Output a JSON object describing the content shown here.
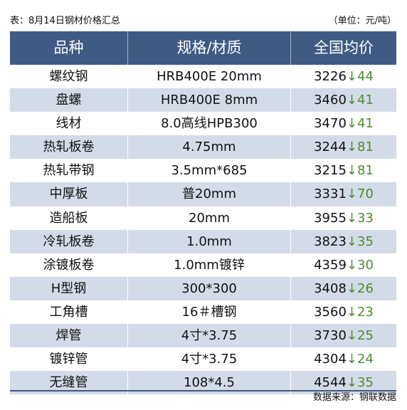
{
  "caption": "表：8月14日钢材价格汇总",
  "unit": "（单位：元/吨）",
  "headers": [
    "品种",
    "规格/材质",
    "全国均价"
  ],
  "rows": [
    {
      "name": "螺纹钢",
      "spec": "HRB400E 20mm",
      "price": "3226",
      "change": "↓44"
    },
    {
      "name": "盘螺",
      "spec": "HRB400E 8mm",
      "price": "3460",
      "change": "↓41"
    },
    {
      "name": "线材",
      "spec": "8.0高线HPB300",
      "price": "3470",
      "change": "↓41"
    },
    {
      "name": "热轧板卷",
      "spec": "4.75mm",
      "price": "3244",
      "change": "↓81"
    },
    {
      "name": "热轧带钢",
      "spec": "3.5mm*685",
      "price": "3215",
      "change": "↓81"
    },
    {
      "name": "中厚板",
      "spec": "普20mm",
      "price": "3331",
      "change": "↓70"
    },
    {
      "name": "造船板",
      "spec": "20mm",
      "price": "3955",
      "change": "↓33"
    },
    {
      "name": "冷轧板卷",
      "spec": "1.0mm",
      "price": "3823",
      "change": "↓35"
    },
    {
      "name": "涂镀板卷",
      "spec": "1.0mm镀锌",
      "price": "4359",
      "change": "↓30"
    },
    {
      "name": "H型钢",
      "spec": "300*300",
      "price": "3408",
      "change": "↓26"
    },
    {
      "name": "工角槽",
      "spec": "16＃槽钢",
      "price": "3560",
      "change": "↓23"
    },
    {
      "name": "焊管",
      "spec": "4寸*3.75",
      "price": "3730",
      "change": "↓25"
    },
    {
      "name": "镀锌管",
      "spec": "4寸*3.75",
      "price": "4304",
      "change": "↓24"
    },
    {
      "name": "无缝管",
      "spec": "108*4.5",
      "price": "4544",
      "change": "↓35"
    }
  ],
  "source": "数据来源：钢联数据",
  "colors": {
    "header_bg": "#3f5b84",
    "alt_row": "#d3dbe8",
    "change": "#4e8c2f"
  }
}
